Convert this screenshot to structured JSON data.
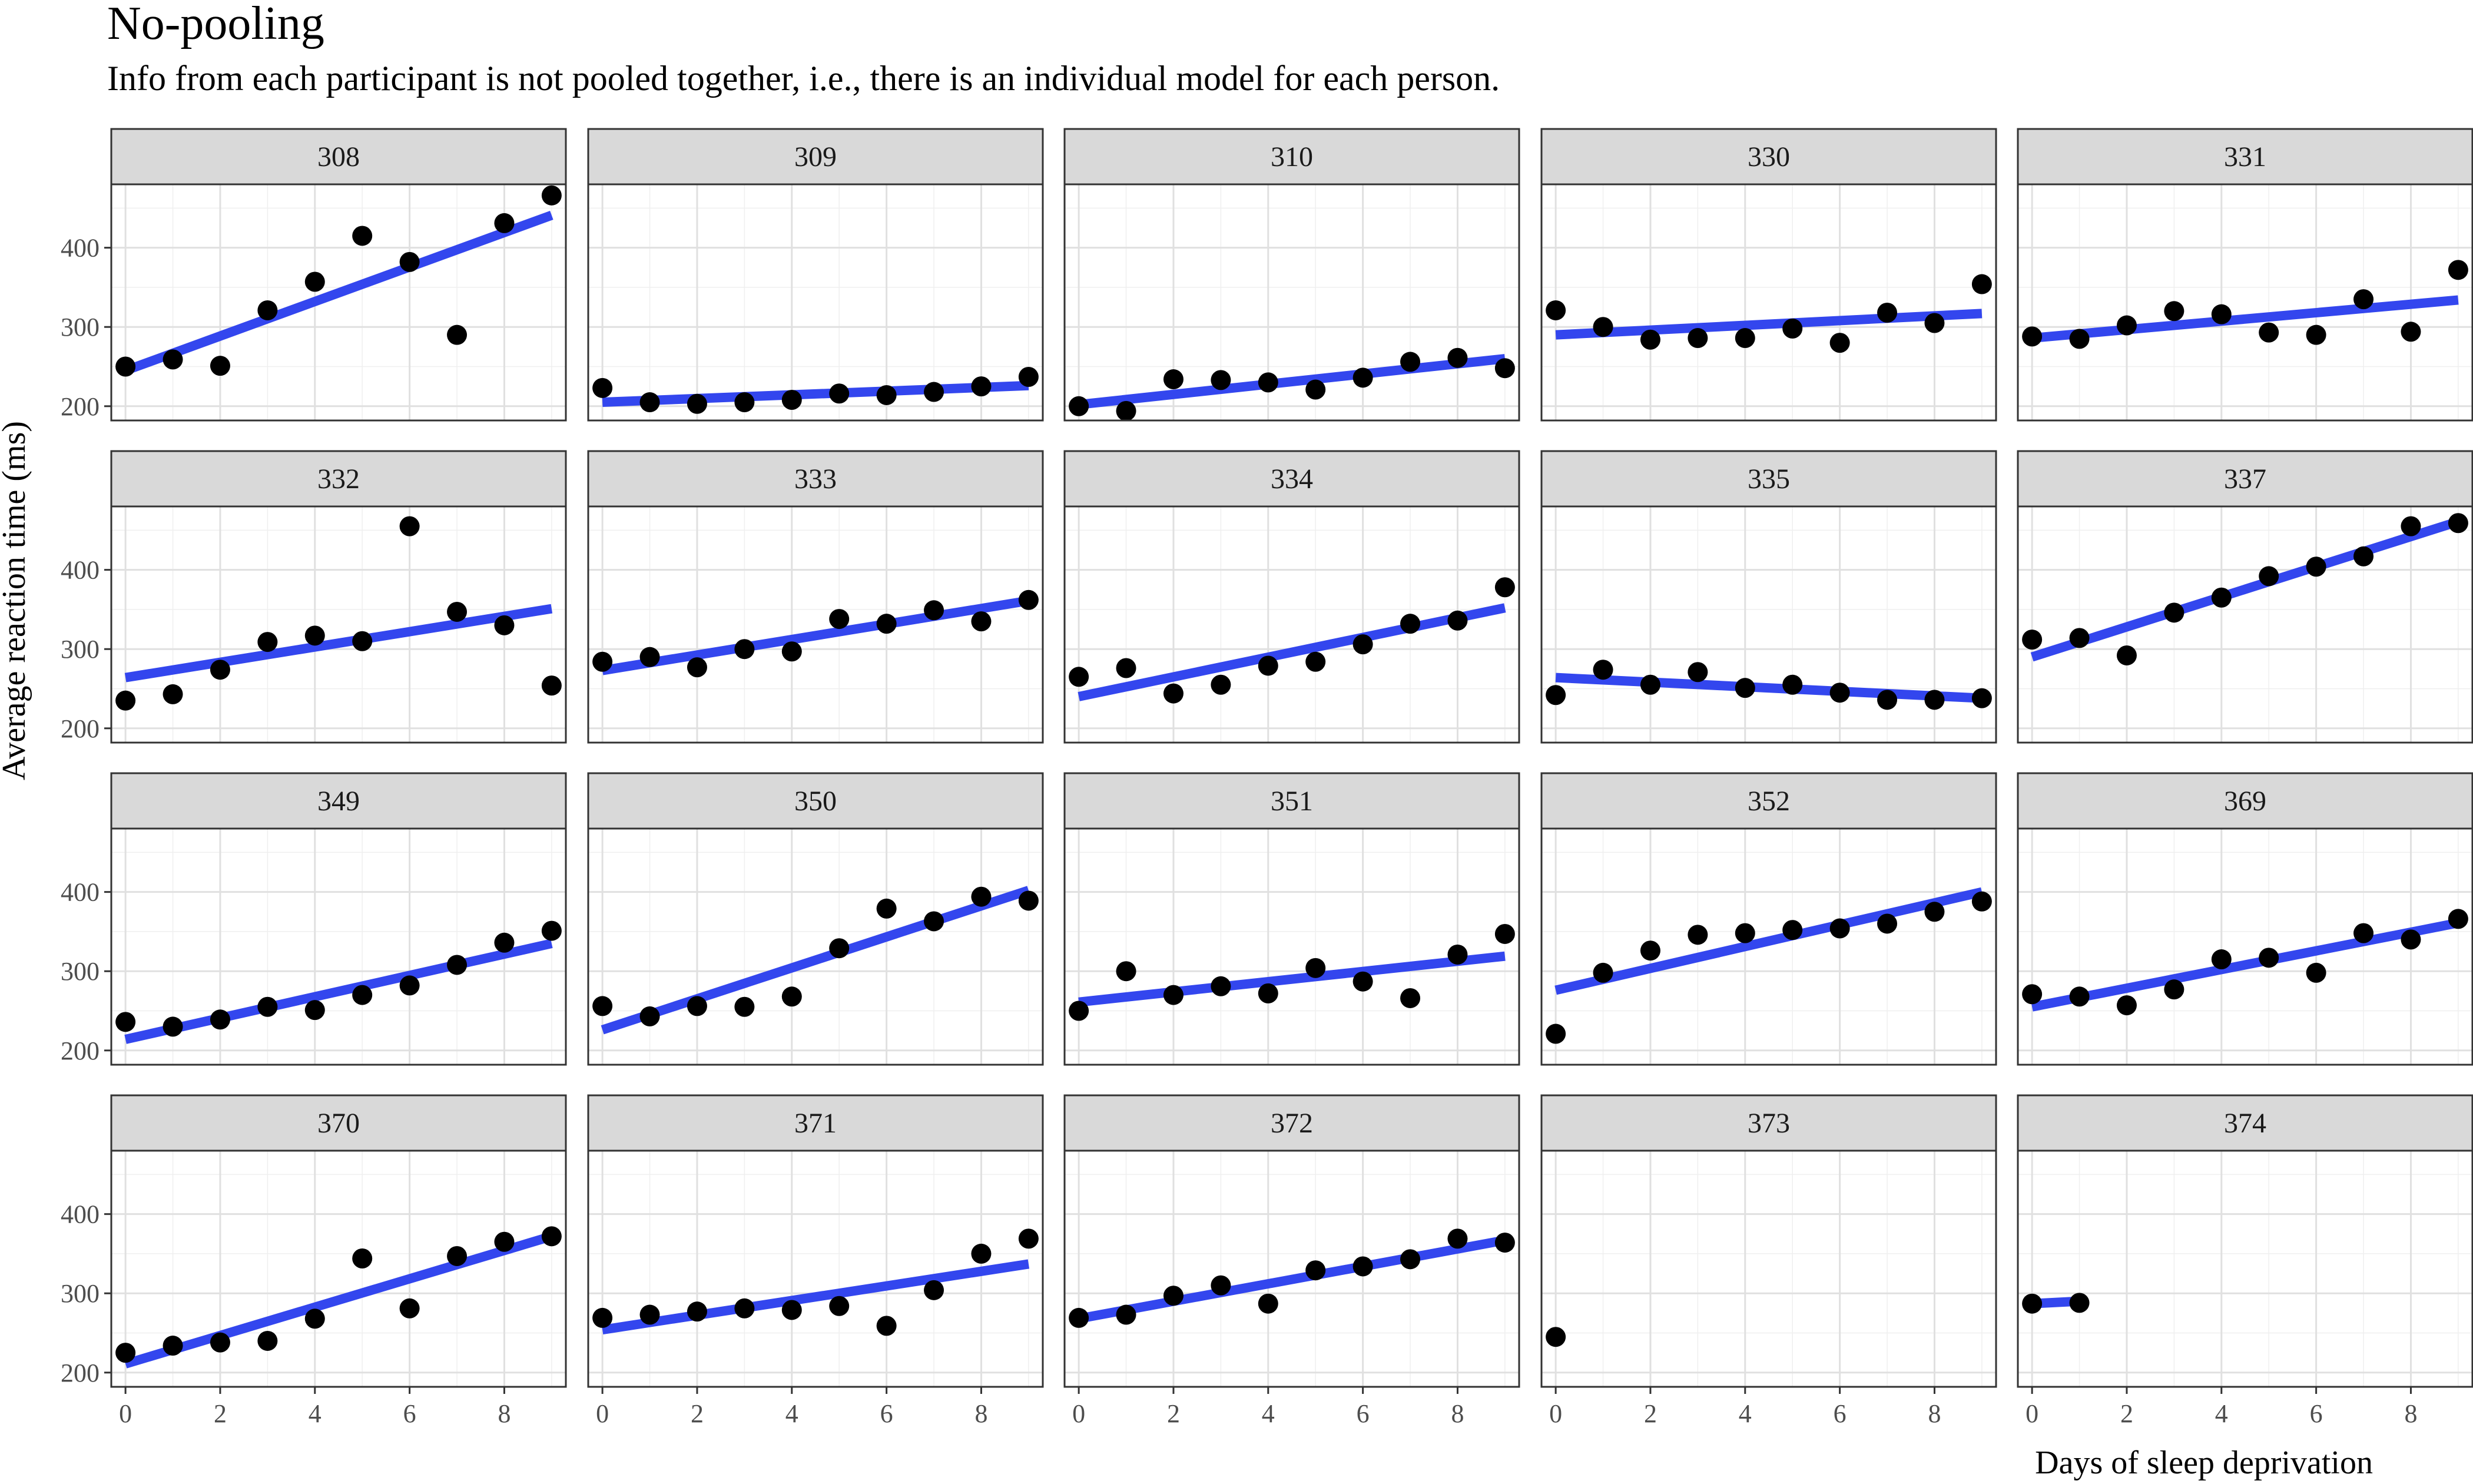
{
  "title": "No-pooling",
  "subtitle": "Info from each participant is not pooled together, i.e., there is an individual model for each person.",
  "colors": {
    "points": "#000000",
    "fit_line": "#3346ee",
    "strip": "#d9d9d9",
    "grid": "#e0e0e0",
    "panel_border": "#333333"
  },
  "chart_data": {
    "type": "scatter",
    "facet_layout": {
      "rows": 4,
      "cols": 5
    },
    "xlabel": "Days of sleep deprivation",
    "ylabel": "Average reaction time (ms)",
    "xlim": [
      -0.3,
      9.3
    ],
    "ylim": [
      182,
      480
    ],
    "x_ticks": [
      0,
      2,
      4,
      6,
      8
    ],
    "y_ticks": [
      200,
      300,
      400
    ],
    "grid": true,
    "panels": [
      {
        "label": "308",
        "x": [
          0,
          1,
          2,
          3,
          4,
          5,
          6,
          7,
          8,
          9
        ],
        "y": [
          250,
          259,
          251,
          321,
          357,
          415,
          382,
          290,
          431,
          466
        ],
        "fit": [
          [
            0,
            245
          ],
          [
            9,
            441
          ]
        ]
      },
      {
        "label": "309",
        "x": [
          0,
          1,
          2,
          3,
          4,
          5,
          6,
          7,
          8,
          9
        ],
        "y": [
          223,
          205,
          203,
          205,
          208,
          216,
          214,
          218,
          225,
          237
        ],
        "fit": [
          [
            0,
            205
          ],
          [
            9,
            226
          ]
        ]
      },
      {
        "label": "310",
        "x": [
          0,
          1,
          2,
          3,
          4,
          5,
          6,
          7,
          8,
          9
        ],
        "y": [
          200,
          194,
          234,
          233,
          230,
          221,
          236,
          256,
          261,
          248
        ],
        "fit": [
          [
            0,
            202
          ],
          [
            9,
            260
          ]
        ]
      },
      {
        "label": "330",
        "x": [
          0,
          1,
          2,
          3,
          4,
          5,
          6,
          7,
          8,
          9
        ],
        "y": [
          321,
          300,
          284,
          286,
          286,
          298,
          280,
          318,
          305,
          354
        ],
        "fit": [
          [
            0,
            290
          ],
          [
            9,
            317
          ]
        ]
      },
      {
        "label": "331",
        "x": [
          0,
          1,
          2,
          3,
          4,
          5,
          6,
          7,
          8,
          9
        ],
        "y": [
          288,
          285,
          302,
          320,
          316,
          293,
          290,
          335,
          294,
          372
        ],
        "fit": [
          [
            0,
            286
          ],
          [
            9,
            334
          ]
        ]
      },
      {
        "label": "332",
        "x": [
          0,
          1,
          2,
          3,
          4,
          5,
          6,
          7,
          8,
          9
        ],
        "y": [
          235,
          243,
          274,
          309,
          317,
          310,
          455,
          347,
          330,
          254
        ],
        "fit": [
          [
            0,
            264
          ],
          [
            9,
            351
          ]
        ]
      },
      {
        "label": "333",
        "x": [
          0,
          1,
          2,
          3,
          4,
          5,
          6,
          7,
          8,
          9
        ],
        "y": [
          284,
          290,
          277,
          300,
          297,
          338,
          332,
          349,
          335,
          362
        ],
        "fit": [
          [
            0,
            273
          ],
          [
            9,
            361
          ]
        ]
      },
      {
        "label": "334",
        "x": [
          0,
          1,
          2,
          3,
          4,
          5,
          6,
          7,
          8,
          9
        ],
        "y": [
          265,
          276,
          244,
          255,
          279,
          284,
          306,
          332,
          336,
          378
        ],
        "fit": [
          [
            0,
            240
          ],
          [
            9,
            352
          ]
        ]
      },
      {
        "label": "335",
        "x": [
          0,
          1,
          2,
          3,
          4,
          5,
          6,
          7,
          8,
          9
        ],
        "y": [
          242,
          274,
          255,
          271,
          251,
          255,
          245,
          236,
          236,
          238
        ],
        "fit": [
          [
            0,
            264
          ],
          [
            9,
            238
          ]
        ]
      },
      {
        "label": "337",
        "x": [
          0,
          1,
          2,
          3,
          4,
          5,
          6,
          7,
          8,
          9
        ],
        "y": [
          312,
          314,
          292,
          346,
          365,
          392,
          404,
          417,
          455,
          459
        ],
        "fit": [
          [
            0,
            290
          ],
          [
            9,
            461
          ]
        ]
      },
      {
        "label": "349",
        "x": [
          0,
          1,
          2,
          3,
          4,
          5,
          6,
          7,
          8,
          9
        ],
        "y": [
          236,
          230,
          239,
          255,
          251,
          270,
          282,
          308,
          336,
          351
        ],
        "fit": [
          [
            0,
            214
          ],
          [
            9,
            335
          ]
        ]
      },
      {
        "label": "350",
        "x": [
          0,
          1,
          2,
          3,
          4,
          5,
          6,
          7,
          8,
          9
        ],
        "y": [
          256,
          243,
          256,
          255,
          268,
          329,
          379,
          363,
          394,
          389
        ],
        "fit": [
          [
            0,
            226
          ],
          [
            9,
            402
          ]
        ]
      },
      {
        "label": "351",
        "x": [
          0,
          1,
          2,
          3,
          4,
          5,
          6,
          7,
          8,
          9
        ],
        "y": [
          250,
          300,
          270,
          281,
          272,
          304,
          287,
          266,
          321,
          347
        ],
        "fit": [
          [
            0,
            261
          ],
          [
            9,
            319
          ]
        ]
      },
      {
        "label": "352",
        "x": [
          0,
          1,
          2,
          3,
          4,
          5,
          6,
          7,
          8,
          9
        ],
        "y": [
          221,
          298,
          326,
          346,
          348,
          352,
          354,
          360,
          375,
          388
        ],
        "fit": [
          [
            0,
            276
          ],
          [
            9,
            400
          ]
        ]
      },
      {
        "label": "369",
        "x": [
          0,
          1,
          2,
          3,
          4,
          5,
          6,
          7,
          8,
          9
        ],
        "y": [
          271,
          268,
          257,
          277,
          315,
          317,
          298,
          348,
          340,
          366
        ],
        "fit": [
          [
            0,
            255
          ],
          [
            9,
            361
          ]
        ]
      },
      {
        "label": "370",
        "x": [
          0,
          1,
          2,
          3,
          4,
          5,
          6,
          7,
          8,
          9
        ],
        "y": [
          225,
          234,
          238,
          240,
          268,
          344,
          281,
          347,
          365,
          372
        ],
        "fit": [
          [
            0,
            211
          ],
          [
            9,
            372
          ]
        ]
      },
      {
        "label": "371",
        "x": [
          0,
          1,
          2,
          3,
          4,
          5,
          6,
          7,
          8,
          9
        ],
        "y": [
          269,
          273,
          277,
          281,
          279,
          284,
          259,
          304,
          350,
          369
        ],
        "fit": [
          [
            0,
            254
          ],
          [
            9,
            337
          ]
        ]
      },
      {
        "label": "372",
        "x": [
          0,
          1,
          2,
          3,
          4,
          5,
          6,
          7,
          8,
          9
        ],
        "y": [
          269,
          273,
          297,
          310,
          287,
          329,
          334,
          343,
          369,
          364
        ],
        "fit": [
          [
            0,
            268
          ],
          [
            9,
            367
          ]
        ]
      },
      {
        "label": "373",
        "x": [
          0
        ],
        "y": [
          245
        ],
        "fit": null
      },
      {
        "label": "374",
        "x": [
          0,
          1
        ],
        "y": [
          287,
          288
        ],
        "fit": [
          [
            0,
            287
          ],
          [
            1,
            290
          ]
        ]
      }
    ]
  }
}
